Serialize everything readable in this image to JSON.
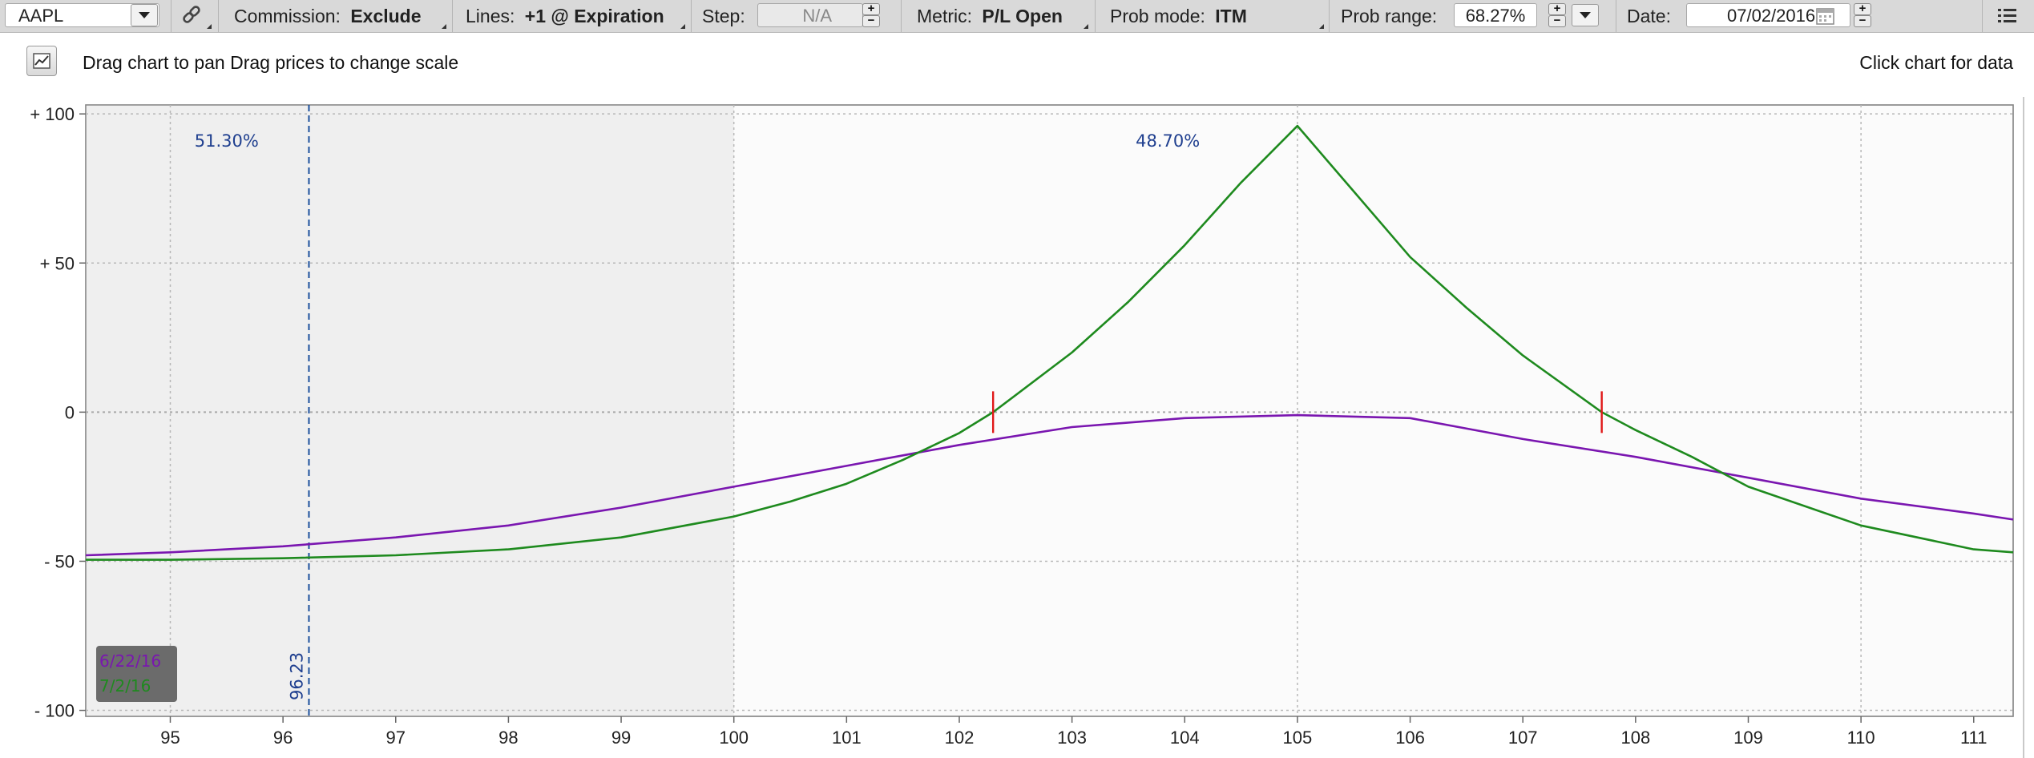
{
  "toolbar": {
    "symbol": "AAPL",
    "commission_label": "Commission:",
    "commission_value": "Exclude",
    "lines_label": "Lines:",
    "lines_value": "+1 @ Expiration",
    "step_label": "Step:",
    "step_value": "N/A",
    "metric_label": "Metric:",
    "metric_value": "P/L Open",
    "prob_mode_label": "Prob mode:",
    "prob_mode_value": "ITM",
    "prob_range_label": "Prob range:",
    "prob_range_value": "68.27%",
    "date_label": "Date:",
    "date_value": "07/02/2016",
    "menu_icon": "menu-list-icon",
    "link_icon": "link-icon",
    "calendar_icon": "calendar-icon"
  },
  "subheader": {
    "hint_text": "Drag chart to pan Drag prices to change scale",
    "click_text": "Click chart for data",
    "chart_icon": "line-chart-icon"
  },
  "colors": {
    "purple_series": "#7a16b0",
    "green_series": "#1e8a1e",
    "marker": "#e01818",
    "price_line": "#1b4f9c",
    "shade": "#efefef"
  },
  "chart_data": {
    "type": "line",
    "xlabel": "",
    "ylabel": "",
    "xlim": [
      94.25,
      111.35
    ],
    "ylim": [
      -102,
      103
    ],
    "x_ticks": [
      95,
      96,
      97,
      98,
      99,
      100,
      101,
      102,
      103,
      104,
      105,
      106,
      107,
      108,
      109,
      110,
      111
    ],
    "y_ticks": [
      100,
      50,
      0,
      -50,
      -100
    ],
    "y_tick_labels": [
      "+ 100",
      "+ 50",
      "0",
      "- 50",
      "- 100"
    ],
    "shaded_range": [
      94.25,
      100.0
    ],
    "current_price": 96.23,
    "current_price_label": "96.23",
    "probabilities": [
      {
        "label": "51.30%",
        "x": 95.5,
        "y": 89
      },
      {
        "label": "48.70%",
        "x": 103.85,
        "y": 89
      }
    ],
    "breakeven_markers": [
      102.3,
      107.7
    ],
    "legend": [
      {
        "label": "6/22/16",
        "color": "#7a16b0"
      },
      {
        "label": "7/2/16",
        "color": "#1e8a1e"
      }
    ],
    "series": [
      {
        "name": "6/22/16",
        "color": "#7a16b0",
        "x": [
          94.25,
          95,
          96,
          97,
          98,
          99,
          100,
          101,
          102,
          103,
          104,
          105,
          106,
          107,
          108,
          109,
          110,
          111,
          111.35
        ],
        "y": [
          -48,
          -47,
          -45,
          -42,
          -38,
          -32,
          -25,
          -18,
          -11,
          -5,
          -2,
          -1,
          -2,
          -9,
          -15,
          -22,
          -29,
          -34,
          -36
        ]
      },
      {
        "name": "7/2/16",
        "color": "#1e8a1e",
        "x": [
          94.25,
          95,
          96,
          97,
          98,
          99,
          100,
          100.5,
          101,
          101.5,
          102,
          102.3,
          103,
          103.5,
          104,
          104.5,
          105,
          105.5,
          106,
          106.5,
          107,
          107.7,
          108,
          108.5,
          109,
          110,
          111,
          111.35
        ],
        "y": [
          -49.5,
          -49.5,
          -49,
          -48,
          -46,
          -42,
          -35,
          -30,
          -24,
          -16,
          -7,
          0,
          20,
          37,
          56,
          77,
          96,
          74,
          52,
          35,
          19,
          0,
          -6,
          -15,
          -25,
          -38,
          -46,
          -47
        ]
      }
    ]
  }
}
